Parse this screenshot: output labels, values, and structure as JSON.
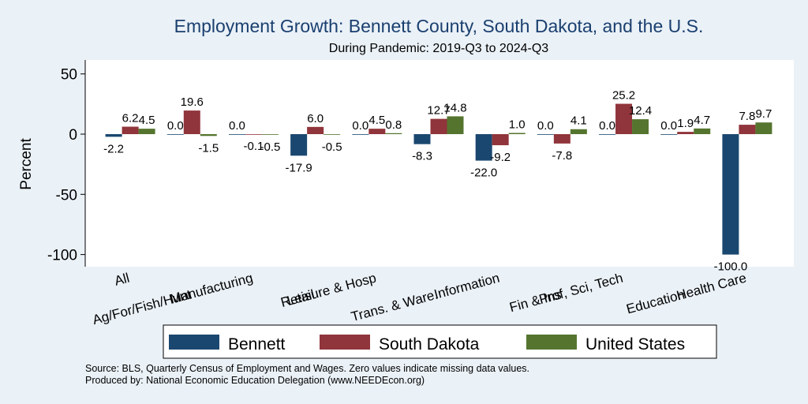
{
  "chart_data": {
    "type": "bar",
    "title": "Employment Growth: Bennett County, South Dakota, and the U.S.",
    "subtitle": "During Pandemic: 2019-Q3 to 2024-Q3",
    "ylabel": "Percent",
    "xlabel": "",
    "ylim": [
      -110,
      55
    ],
    "yticks": [
      50,
      0,
      -50,
      -100
    ],
    "grid": false,
    "legend_position": "bottom",
    "categories": [
      "All",
      "Ag/For/Fish/Hunt",
      "Manufacturing",
      "Retail",
      "Leisure & Hosp",
      "Trans. & Ware.",
      "Information",
      "Fin & Ins",
      "Prof, Sci, Tech",
      "Education",
      "Health Care"
    ],
    "series": [
      {
        "name": "Bennett",
        "color": "#1a476f",
        "values": [
          -2.2,
          0.0,
          0.0,
          -17.9,
          0.0,
          -8.3,
          -22.0,
          0.0,
          0.0,
          0.0,
          -100.0
        ]
      },
      {
        "name": "South Dakota",
        "color": "#90353b",
        "values": [
          6.2,
          19.6,
          -0.1,
          6.0,
          4.5,
          12.7,
          -9.2,
          -7.8,
          25.2,
          1.9,
          7.8
        ]
      },
      {
        "name": "United States",
        "color": "#55752f",
        "values": [
          4.5,
          -1.5,
          -0.5,
          -0.5,
          0.8,
          14.8,
          1.0,
          4.1,
          12.4,
          4.7,
          9.7
        ]
      }
    ]
  },
  "notes": {
    "source": "Source: BLS, Quarterly Census of Employment and Wages. Zero values indicate missing data values.",
    "produced": "Produced by: National Economic Education Delegation (www.NEEDEcon.org)"
  }
}
